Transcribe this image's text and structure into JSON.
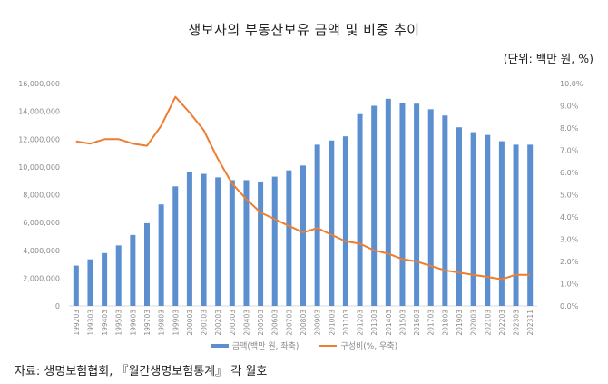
{
  "header": {
    "title": "생보사의 부동산보유 금액 및 비중 추이",
    "unit": "(단위: 백만 원, %)"
  },
  "footer": {
    "source": "자료: 생명보험협회, 『월간생명보험통계』 각 월호"
  },
  "legend": {
    "bar_label": "금액(백만 원, 좌축)",
    "line_label": "구성비(%, 우축)"
  },
  "colors": {
    "bar": "#5B8FD0",
    "line": "#ED7D31",
    "axis_text": "#8a8a8a",
    "baseline": "#d9d9d9"
  },
  "chart_data": {
    "type": "bar+line",
    "title": "생보사의 부동산보유 금액 및 비중 추이",
    "categories": [
      "199203",
      "199303",
      "199403",
      "199503",
      "199603",
      "199703",
      "199803",
      "199903",
      "200003",
      "200103",
      "200203",
      "200303",
      "200403",
      "200503",
      "200603",
      "200703",
      "200803",
      "200903",
      "201003",
      "201103",
      "201203",
      "201303",
      "201403",
      "201503",
      "201603",
      "201703",
      "201803",
      "201903",
      "202003",
      "202103",
      "202203",
      "202303",
      "202311"
    ],
    "series": [
      {
        "name": "금액(백만 원, 좌축)",
        "type": "bar",
        "axis": "left",
        "values": [
          2900000,
          3350000,
          3800000,
          4350000,
          5100000,
          5950000,
          7300000,
          8600000,
          9600000,
          9500000,
          9250000,
          9050000,
          9050000,
          8950000,
          9300000,
          9750000,
          10100000,
          11600000,
          11900000,
          12200000,
          13800000,
          14400000,
          14900000,
          14600000,
          14550000,
          14150000,
          13700000,
          12850000,
          12500000,
          12300000,
          11850000,
          11600000,
          11600000
        ]
      },
      {
        "name": "구성비(%, 우축)",
        "type": "line",
        "axis": "right",
        "values": [
          7.4,
          7.3,
          7.5,
          7.5,
          7.3,
          7.2,
          8.1,
          9.4,
          8.7,
          7.9,
          6.6,
          5.5,
          4.8,
          4.2,
          3.9,
          3.6,
          3.3,
          3.5,
          3.2,
          2.9,
          2.8,
          2.5,
          2.35,
          2.1,
          2.0,
          1.8,
          1.6,
          1.5,
          1.4,
          1.3,
          1.2,
          1.4,
          1.4
        ]
      }
    ],
    "left_axis": {
      "ylim": [
        0,
        16000000
      ],
      "ticks": [
        0,
        2000000,
        4000000,
        6000000,
        8000000,
        10000000,
        12000000,
        14000000,
        16000000
      ],
      "tick_labels": [
        "0",
        "2,000,000",
        "4,000,000",
        "6,000,000",
        "8,000,000",
        "10,000,000",
        "12,000,000",
        "14,000,000",
        "16,000,000"
      ]
    },
    "right_axis": {
      "ylim": [
        0,
        10
      ],
      "ticks": [
        0,
        1,
        2,
        3,
        4,
        5,
        6,
        7,
        8,
        9,
        10
      ],
      "tick_labels": [
        "0.0%",
        "1.0%",
        "2.0%",
        "3.0%",
        "4.0%",
        "5.0%",
        "6.0%",
        "7.0%",
        "8.0%",
        "9.0%",
        "10.0%"
      ]
    },
    "grid": false,
    "legend_position": "bottom"
  }
}
